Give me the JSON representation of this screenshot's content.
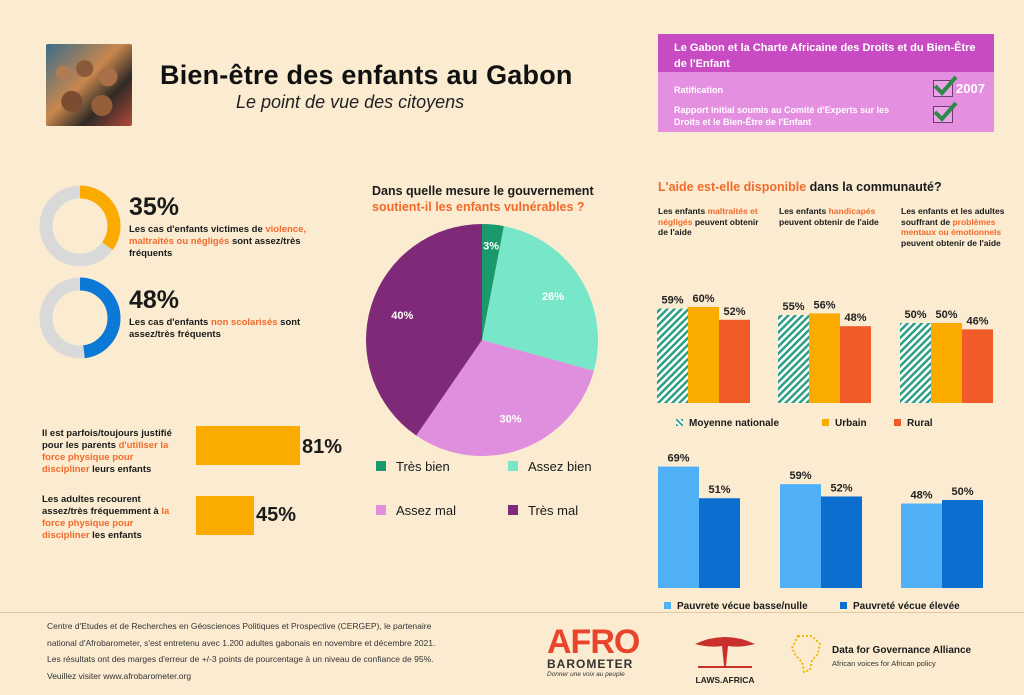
{
  "header": {
    "title": "Bien-être des enfants au Gabon",
    "subtitle": "Le point de vue des citoyens"
  },
  "charter": {
    "title": "Le Gabon et la Charte Africaine des Droits et du Bien-Être de l'Enfant",
    "rows": [
      {
        "label": "Ratification",
        "value": "2007"
      },
      {
        "label": "Rapport initial soumis au Comité d'Experts sur les Droits et le Bien-Être de l'Enfant",
        "value": ""
      }
    ]
  },
  "donuts": [
    {
      "value_label": "35%",
      "value": 35,
      "color": "#fbab00",
      "text_before": "Les cas d'enfants victimes de ",
      "text_highlight": "violence, maltraités ou négligés",
      "text_after": " sont assez/très fréquents"
    },
    {
      "value_label": "48%",
      "value": 48,
      "color": "#0c79d6",
      "text_before": "Les cas d'enfants ",
      "text_highlight": "non scolarisés",
      "text_after": " sont assez/très fréquents"
    }
  ],
  "hbars": [
    {
      "value_label": "81%",
      "value": 81,
      "text_before": "Il est parfois/toujours justifié pour les parents ",
      "text_highlight": "d'utiliser la force physique pour discipliner",
      "text_after": " leurs enfants"
    },
    {
      "value_label": "45%",
      "value": 45,
      "text_before": "Les adultes recourent assez/très fréquemment à ",
      "text_highlight": "la force physique pour discipliner",
      "text_after": " les enfants"
    }
  ],
  "pie_section": {
    "title_plain": "Dans quelle mesure le gouvernement",
    "title_highlight": "soutient-il les enfants vulnérables ?"
  },
  "aid_section": {
    "title_highlight": "L'aide est-elle disponible",
    "title_plain": " dans la communauté?",
    "groups": [
      {
        "label_before": "Les enfants ",
        "label_highlight": "maltraités et négligés",
        "label_after": " peuvent obtenir de l'aide"
      },
      {
        "label_before": "Les enfants ",
        "label_highlight": "handicapés",
        "label_after": " peuvent obtenir de l'aide"
      },
      {
        "label_before": "Les enfants et les adultes souffrant de ",
        "label_highlight": "problèmes mentaux ou émotionnels",
        "label_after": " peuvent obtenir de l'aide"
      }
    ]
  },
  "chart_data": [
    {
      "type": "pie",
      "title": "Dans quelle mesure le gouvernement soutient-il les enfants vulnérables ?",
      "categories": [
        "Très bien",
        "Assez bien",
        "Assez mal",
        "Très mal"
      ],
      "values": [
        3,
        26,
        30,
        40
      ],
      "value_labels": [
        "3%",
        "26%",
        "30%",
        "40%"
      ],
      "colors": [
        "#1a9a6c",
        "#78e6c8",
        "#e08ede",
        "#7e2a78"
      ]
    },
    {
      "type": "bar",
      "title": "L'aide est-elle disponible dans la communauté?",
      "categories": [
        "Les enfants maltraités et négligés peuvent obtenir de l'aide",
        "Les enfants handicapés peuvent obtenir de l'aide",
        "Les enfants et les adultes souffrant de problèmes mentaux ou émotionnels peuvent obtenir de l'aide"
      ],
      "series": [
        {
          "name": "Moyenne nationale",
          "values": [
            59,
            55,
            50
          ],
          "labels": [
            "59%",
            "55%",
            "50%"
          ],
          "color": "#2e9e84"
        },
        {
          "name": "Urbain",
          "values": [
            60,
            56,
            50
          ],
          "labels": [
            "60%",
            "56%",
            "50%"
          ],
          "color": "#fbab00"
        },
        {
          "name": "Rural",
          "values": [
            52,
            48,
            46
          ],
          "labels": [
            "52%",
            "48%",
            "46%"
          ],
          "color": "#f15a29"
        }
      ],
      "ylim": [
        0,
        100
      ]
    },
    {
      "type": "bar",
      "categories": [
        "Les enfants maltraités et négligés peuvent obtenir de l'aide",
        "Les enfants handicapés peuvent obtenir de l'aide",
        "Les enfants et les adultes souffrant de problèmes mentaux ou émotionnels peuvent obtenir de l'aide"
      ],
      "series": [
        {
          "name": "Pauvrete vécue basse/nulle",
          "values": [
            69,
            59,
            48
          ],
          "labels": [
            "69%",
            "59%",
            "48%"
          ],
          "color": "#4fb0f7"
        },
        {
          "name": "Pauvreté vécue élevée",
          "values": [
            51,
            52,
            50
          ],
          "labels": [
            "51%",
            "52%",
            "50%"
          ],
          "color": "#0c6fd0"
        }
      ],
      "ylim": [
        0,
        100
      ]
    }
  ],
  "footer": {
    "lines": [
      "Centre d'Etudes et de Recherches en Géosciences Politiques et Prospective (CERGEP), le partenaire",
      "national d'Afrobarometer, s'est entretenu avec 1.200 adultes gabonais en novembre et décembre 2021.",
      "Les résultats ont des marges d'erreur de +/-3 points de pourcentage à un niveau de confiance de 95%.",
      "Veuillez visiter www.afrobarometer.org"
    ]
  },
  "logos": {
    "afro_big": "AFRO",
    "afro_sub": "BAROMETER",
    "afro_tag": "Donner une voix au peuple",
    "laws": "LAWS.AFRICA",
    "dga_name": "Data for Governance Alliance",
    "dga_tag": "African voices for African policy"
  }
}
